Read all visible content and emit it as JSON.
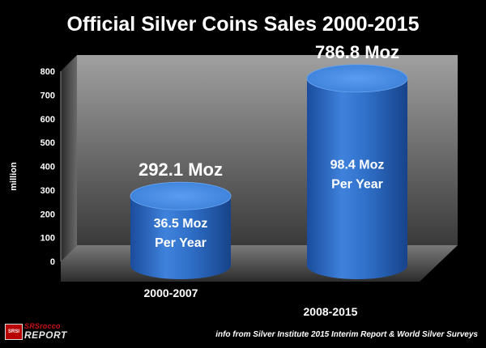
{
  "chart_data": {
    "type": "bar",
    "title": "Official Silver Coins Sales 2000-2015",
    "ylabel": "million",
    "xlabel": "",
    "ylim": [
      0,
      800
    ],
    "yticks": [
      0,
      100,
      200,
      300,
      400,
      500,
      600,
      700,
      800
    ],
    "grid": false,
    "categories": [
      "2000-2007",
      "2008-2015"
    ],
    "values": [
      292.1,
      786.8
    ],
    "top_labels": [
      "292.1 Moz",
      "786.8 Moz"
    ],
    "inner_labels": [
      [
        "36.5 Moz",
        "Per Year"
      ],
      [
        "98.4 Moz",
        "Per Year"
      ]
    ],
    "bar_color": "#2f6fc8"
  },
  "logo": {
    "top_text": "SRSrocco",
    "bottom_text": "REPORT",
    "badge_text": "SRSI"
  },
  "source_note": "info from Silver Institute 2015 Interim Report & World Silver Surveys"
}
